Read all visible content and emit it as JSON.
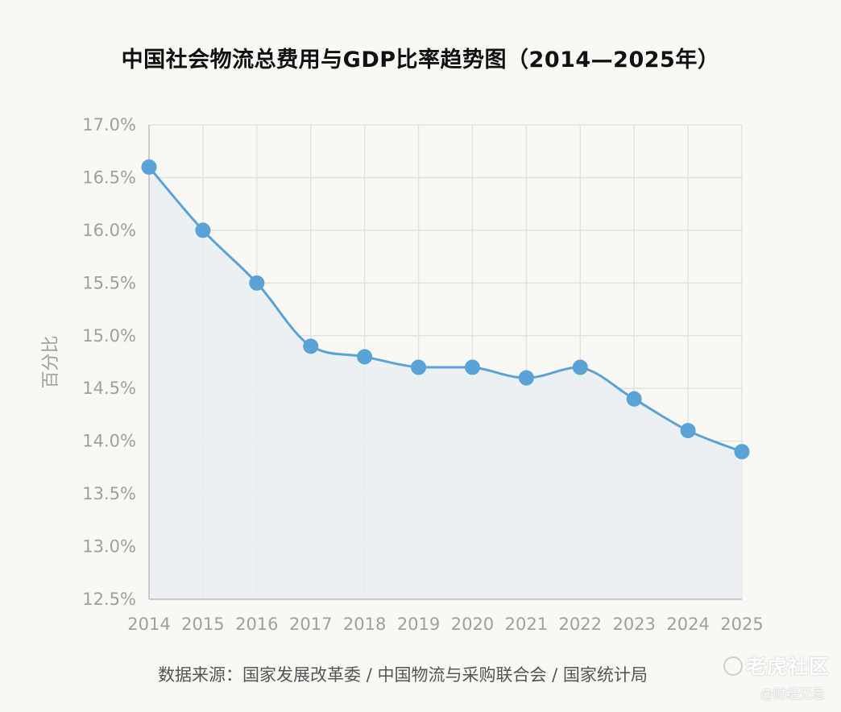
{
  "title": "中国社会物流总费用与GDP比率趋势图（2014—2025年）",
  "source": "数据来源：国家发展改革委 / 中国物流与采购联合会 / 国家统计局",
  "watermark": {
    "main": "老虎社区",
    "sub": "@财经无忌"
  },
  "colors": {
    "line": "#5ba3d6",
    "fill": "#e9eff2",
    "grid": "#e2e2e2",
    "axis_text": "#a0a0a0",
    "background": "#f9f8f4"
  },
  "chart_data": {
    "type": "line",
    "title": "中国社会物流总费用与GDP比率趋势图（2014—2025年）",
    "xlabel": "",
    "ylabel": "百分比",
    "x": [
      "2014",
      "2015",
      "2016",
      "2017",
      "2018",
      "2019",
      "2020",
      "2021",
      "2022",
      "2023",
      "2024",
      "2025"
    ],
    "series": [
      {
        "values": [
          16.6,
          16.0,
          15.5,
          14.9,
          14.8,
          14.7,
          14.7,
          14.6,
          14.7,
          14.4,
          14.1,
          13.9
        ]
      }
    ],
    "ylim": [
      12.5,
      17.0
    ],
    "yticks": [
      "12.5%",
      "13.0%",
      "13.5%",
      "14.0%",
      "14.5%",
      "15.0%",
      "15.5%",
      "16.0%",
      "16.5%",
      "17.0%"
    ],
    "grid": true,
    "area_fill": true,
    "smooth": true,
    "legend": "none"
  }
}
